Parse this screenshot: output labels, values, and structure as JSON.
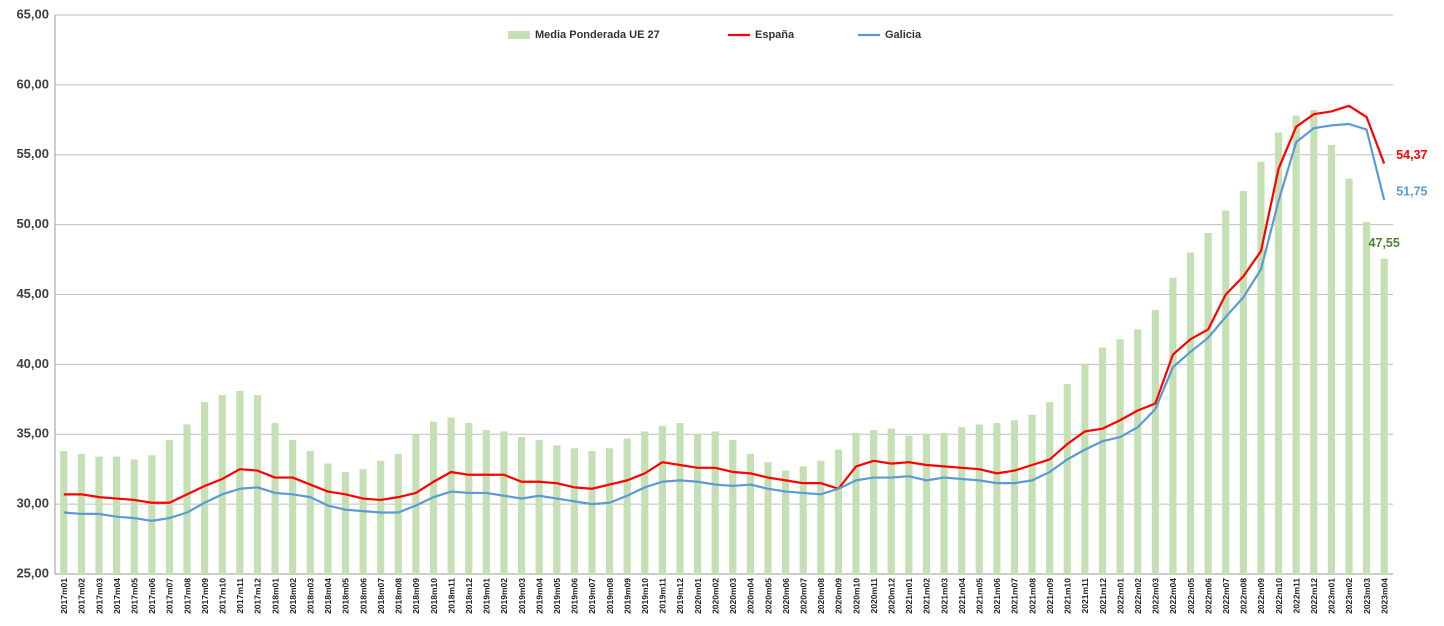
{
  "chart_data": {
    "type": "bar-line",
    "categories": [
      "2017m01",
      "2017m02",
      "2017m03",
      "2017m04",
      "2017m05",
      "2017m06",
      "2017m07",
      "2017m08",
      "2017m09",
      "2017m10",
      "2017m11",
      "2017m12",
      "2018m01",
      "2018m02",
      "2018m03",
      "2018m04",
      "2018m05",
      "2018m06",
      "2018m07",
      "2018m08",
      "2018m09",
      "2018m10",
      "2018m11",
      "2018m12",
      "2019m01",
      "2019m02",
      "2019m03",
      "2019m04",
      "2019m05",
      "2019m06",
      "2019m07",
      "2019m08",
      "2019m09",
      "2019m10",
      "2019m11",
      "2019m12",
      "2020m01",
      "2020m02",
      "2020m03",
      "2020m04",
      "2020m05",
      "2020m06",
      "2020m07",
      "2020m08",
      "2020m09",
      "2020m10",
      "2020m11",
      "2020m12",
      "2021m01",
      "2021m02",
      "2021m03",
      "2021m04",
      "2021m05",
      "2021m06",
      "2021m07",
      "2021m08",
      "2021m09",
      "2021m10",
      "2021m11",
      "2021m12",
      "2022m01",
      "2022m02",
      "2022m03",
      "2022m04",
      "2022m05",
      "2022m06",
      "2022m07",
      "2022m08",
      "2022m09",
      "2022m10",
      "2022m11",
      "2022m12",
      "2023m01",
      "2023m02",
      "2023m03",
      "2023m04"
    ],
    "series": [
      {
        "name": "Media Ponderada UE 27",
        "type": "bar",
        "color": "#c5e0b4",
        "label_color": "#548235",
        "values": [
          33.8,
          33.6,
          33.4,
          33.4,
          33.2,
          33.5,
          34.6,
          35.7,
          37.3,
          37.8,
          38.1,
          37.8,
          35.8,
          34.6,
          33.8,
          32.9,
          32.3,
          32.5,
          33.1,
          33.6,
          35.0,
          35.9,
          36.2,
          35.8,
          35.3,
          35.2,
          34.8,
          34.6,
          34.2,
          34.0,
          33.8,
          34.0,
          34.7,
          35.2,
          35.6,
          35.8,
          35.0,
          35.2,
          34.6,
          33.6,
          33.0,
          32.4,
          32.7,
          33.1,
          33.9,
          35.1,
          35.3,
          35.4,
          34.9,
          35.0,
          35.1,
          35.5,
          35.7,
          35.8,
          36.0,
          36.4,
          37.3,
          38.6,
          40.0,
          41.2,
          41.8,
          42.5,
          43.9,
          46.2,
          48.0,
          49.4,
          51.0,
          52.4,
          54.5,
          56.6,
          57.8,
          58.2,
          55.7,
          53.3,
          50.2,
          47.55
        ],
        "value_labels": [
          null,
          null,
          null,
          null,
          null,
          null,
          null,
          null,
          null,
          null,
          null,
          null,
          null,
          null,
          null,
          null,
          null,
          null,
          null,
          null,
          null,
          null,
          null,
          null,
          null,
          null,
          null,
          null,
          null,
          null,
          null,
          null,
          null,
          null,
          null,
          null,
          null,
          null,
          null,
          null,
          null,
          null,
          null,
          null,
          null,
          null,
          null,
          null,
          null,
          null,
          null,
          null,
          null,
          null,
          null,
          null,
          null,
          null,
          null,
          null,
          null,
          null,
          null,
          null,
          null,
          null,
          null,
          null,
          null,
          null,
          null,
          null,
          null,
          null,
          null,
          "47,55"
        ]
      },
      {
        "name": "España",
        "type": "line",
        "color": "#ff0000",
        "label_color": "#ff0000",
        "values": [
          30.7,
          30.7,
          30.5,
          30.4,
          30.3,
          30.1,
          30.1,
          30.7,
          31.3,
          31.8,
          32.5,
          32.4,
          31.9,
          31.9,
          31.4,
          30.9,
          30.7,
          30.4,
          30.3,
          30.5,
          30.8,
          31.6,
          32.3,
          32.1,
          32.1,
          32.1,
          31.6,
          31.6,
          31.5,
          31.2,
          31.1,
          31.4,
          31.7,
          32.2,
          33.0,
          32.8,
          32.6,
          32.6,
          32.3,
          32.2,
          31.9,
          31.7,
          31.5,
          31.5,
          31.1,
          32.7,
          33.1,
          32.9,
          33.0,
          32.8,
          32.7,
          32.6,
          32.5,
          32.2,
          32.4,
          32.8,
          33.2,
          34.3,
          35.2,
          35.4,
          36.0,
          36.7,
          37.2,
          40.7,
          41.8,
          42.5,
          45.0,
          46.3,
          48.1,
          54.0,
          57.0,
          57.9,
          58.1,
          58.5,
          57.7,
          54.37
        ],
        "value_labels": [
          null,
          null,
          null,
          null,
          null,
          null,
          null,
          null,
          null,
          null,
          null,
          null,
          null,
          null,
          null,
          null,
          null,
          null,
          null,
          null,
          null,
          null,
          null,
          null,
          null,
          null,
          null,
          null,
          null,
          null,
          null,
          null,
          null,
          null,
          null,
          null,
          null,
          null,
          null,
          null,
          null,
          null,
          null,
          null,
          null,
          null,
          null,
          null,
          null,
          null,
          null,
          null,
          null,
          null,
          null,
          null,
          null,
          null,
          null,
          null,
          null,
          null,
          null,
          null,
          null,
          null,
          null,
          null,
          null,
          null,
          null,
          null,
          null,
          null,
          null,
          "54,37"
        ]
      },
      {
        "name": "Galicia",
        "type": "line",
        "color": "#5b9bd5",
        "label_color": "#5b9bd5",
        "values": [
          29.4,
          29.3,
          29.3,
          29.1,
          29.0,
          28.8,
          29.0,
          29.4,
          30.1,
          30.7,
          31.1,
          31.2,
          30.8,
          30.7,
          30.5,
          29.9,
          29.6,
          29.5,
          29.4,
          29.4,
          29.9,
          30.5,
          30.9,
          30.8,
          30.8,
          30.6,
          30.4,
          30.6,
          30.4,
          30.2,
          30.0,
          30.1,
          30.6,
          31.2,
          31.6,
          31.7,
          31.6,
          31.4,
          31.3,
          31.4,
          31.1,
          30.9,
          30.8,
          30.7,
          31.1,
          31.7,
          31.9,
          31.9,
          32.0,
          31.7,
          31.9,
          31.8,
          31.7,
          31.5,
          31.5,
          31.7,
          32.3,
          33.2,
          33.9,
          34.5,
          34.8,
          35.5,
          36.8,
          39.8,
          40.9,
          41.9,
          43.4,
          44.8,
          46.8,
          51.7,
          55.9,
          56.9,
          57.1,
          57.2,
          56.8,
          51.75
        ],
        "value_labels": [
          null,
          null,
          null,
          null,
          null,
          null,
          null,
          null,
          null,
          null,
          null,
          null,
          null,
          null,
          null,
          null,
          null,
          null,
          null,
          null,
          null,
          null,
          null,
          null,
          null,
          null,
          null,
          null,
          null,
          null,
          null,
          null,
          null,
          null,
          null,
          null,
          null,
          null,
          null,
          null,
          null,
          null,
          null,
          null,
          null,
          null,
          null,
          null,
          null,
          null,
          null,
          null,
          null,
          null,
          null,
          null,
          null,
          null,
          null,
          null,
          null,
          null,
          null,
          null,
          null,
          null,
          null,
          null,
          null,
          null,
          null,
          null,
          null,
          null,
          null,
          "51,75"
        ]
      }
    ],
    "ylim": [
      25,
      65
    ],
    "yticks": [
      {
        "value": 25,
        "label": "25,00"
      },
      {
        "value": 30,
        "label": "30,00"
      },
      {
        "value": 35,
        "label": "35,00"
      },
      {
        "value": 40,
        "label": "40,00"
      },
      {
        "value": 45,
        "label": "45,00"
      },
      {
        "value": 50,
        "label": "50,00"
      },
      {
        "value": 55,
        "label": "55,00"
      },
      {
        "value": 60,
        "label": "60,00"
      },
      {
        "value": 65,
        "label": "65,00"
      }
    ],
    "grid": true,
    "legend": "top"
  }
}
